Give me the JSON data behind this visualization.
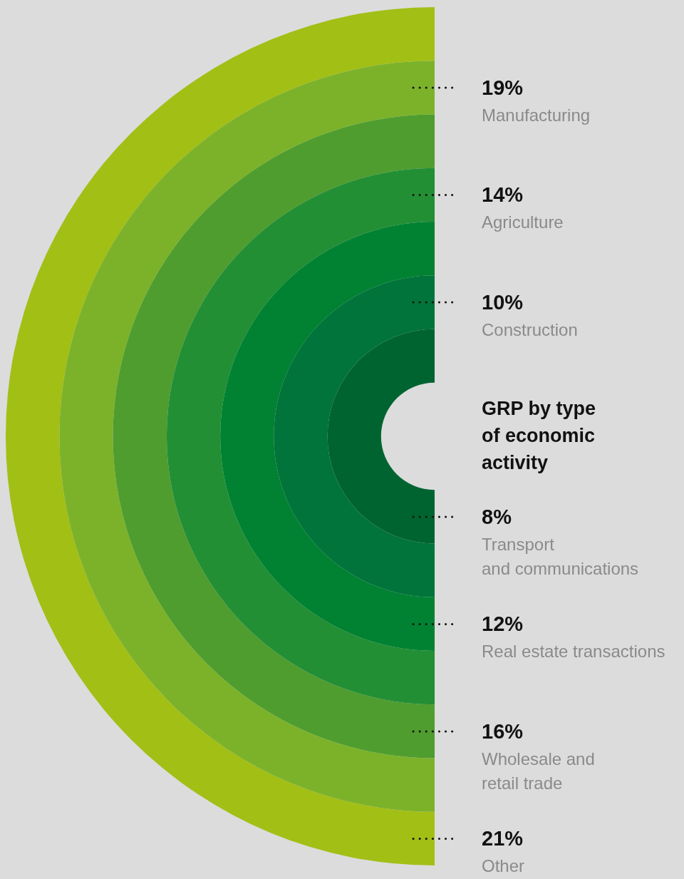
{
  "chart_data": {
    "type": "other",
    "title": "GRP by type of economic activity",
    "categories": [
      "Other",
      "Manufacturing",
      "Wholesale and\nretail trade",
      "Agriculture",
      "Real estate transactions",
      "Construction",
      "Transport\nand communications"
    ],
    "values": [
      21,
      19,
      16,
      14,
      12,
      10,
      8
    ],
    "value_labels": [
      "21%",
      "19%",
      "16%",
      "14%",
      "12%",
      "10%",
      "8%"
    ],
    "colors": [
      "#a2bf16",
      "#7cb22a",
      "#4f9d2f",
      "#238f35",
      "#008232",
      "#00743a",
      "#006430"
    ]
  }
}
